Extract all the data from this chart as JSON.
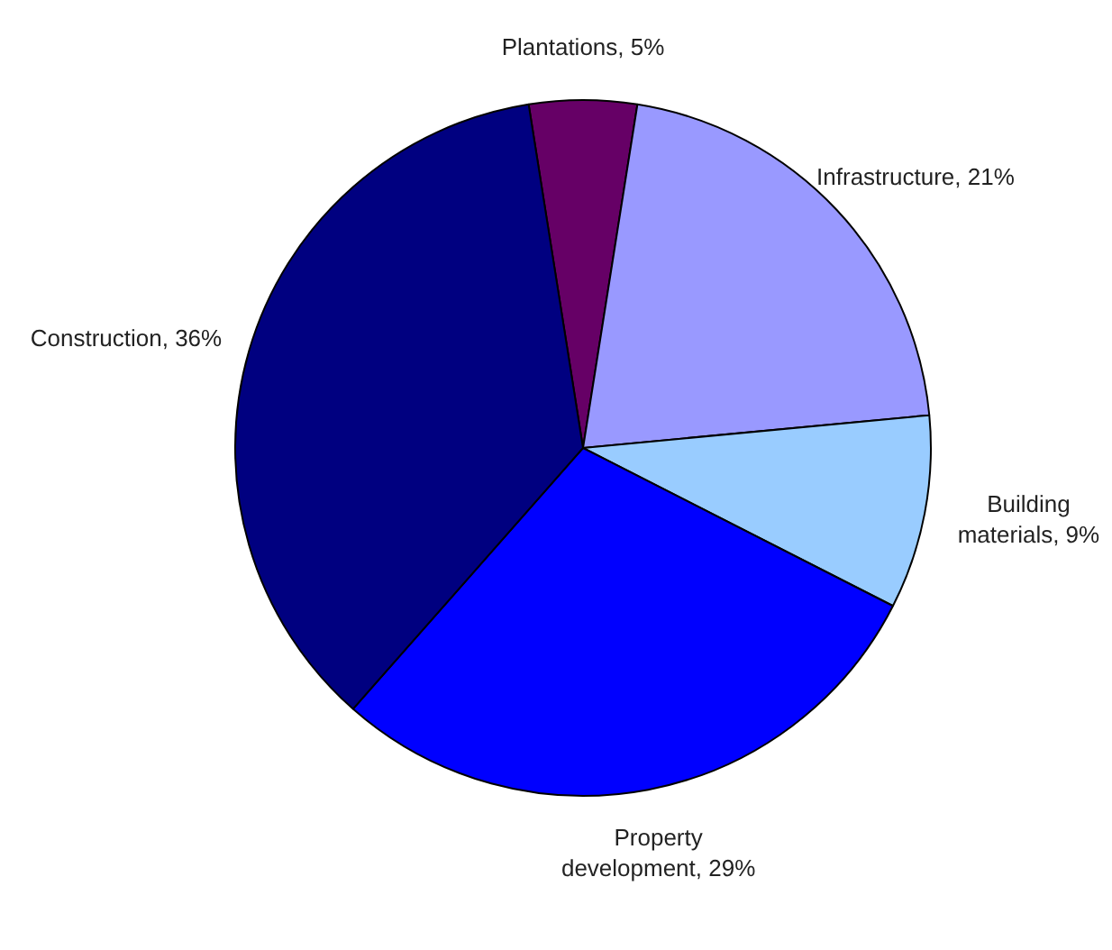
{
  "chart_data": {
    "type": "pie",
    "categories": [
      "Plantations",
      "Infrastructure",
      "Building materials",
      "Property development",
      "Construction"
    ],
    "values": [
      5,
      21,
      9,
      29,
      36
    ],
    "value_labels": [
      "5%",
      "21%",
      "9%",
      "29%",
      "36%"
    ],
    "colors": [
      "#660066",
      "#9999ff",
      "#99ccff",
      "#0000ff",
      "#000080"
    ],
    "data_labels": true,
    "legend": false
  }
}
